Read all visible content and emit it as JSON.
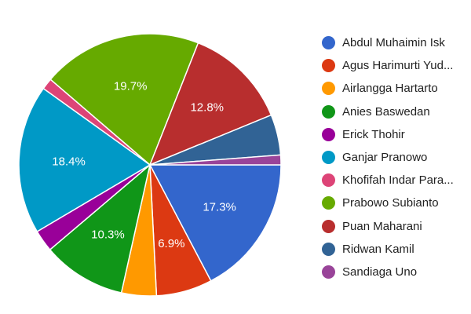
{
  "chart_data": {
    "type": "pie",
    "title": "",
    "legend_position": "right",
    "series": [
      {
        "name": "Abdul Muhaimin Isk",
        "value": 17.3,
        "color": "#3366cc",
        "label": "17.3%"
      },
      {
        "name": "Agus Harimurti Yud...",
        "value": 6.9,
        "color": "#dc3912",
        "label": "6.9%"
      },
      {
        "name": "Airlangga Hartarto",
        "value": 4.3,
        "color": "#ff9900",
        "label": ""
      },
      {
        "name": "Anies Baswedan",
        "value": 10.3,
        "color": "#109618",
        "label": "10.3%"
      },
      {
        "name": "Erick Thohir",
        "value": 2.7,
        "color": "#990099",
        "label": ""
      },
      {
        "name": "Ganjar Pranowo",
        "value": 18.4,
        "color": "#0099c6",
        "label": "18.4%"
      },
      {
        "name": "Khofifah Indar Para...",
        "value": 1.4,
        "color": "#dd4477",
        "label": ""
      },
      {
        "name": "Prabowo Subianto",
        "value": 19.7,
        "color": "#66aa00",
        "label": "19.7%"
      },
      {
        "name": "Puan Maharani",
        "value": 12.8,
        "color": "#b82e2e",
        "label": "12.8%"
      },
      {
        "name": "Ridwan Kamil",
        "value": 5.0,
        "color": "#316395",
        "label": ""
      },
      {
        "name": "Sandiaga Uno",
        "value": 1.2,
        "color": "#994499",
        "label": ""
      }
    ]
  }
}
